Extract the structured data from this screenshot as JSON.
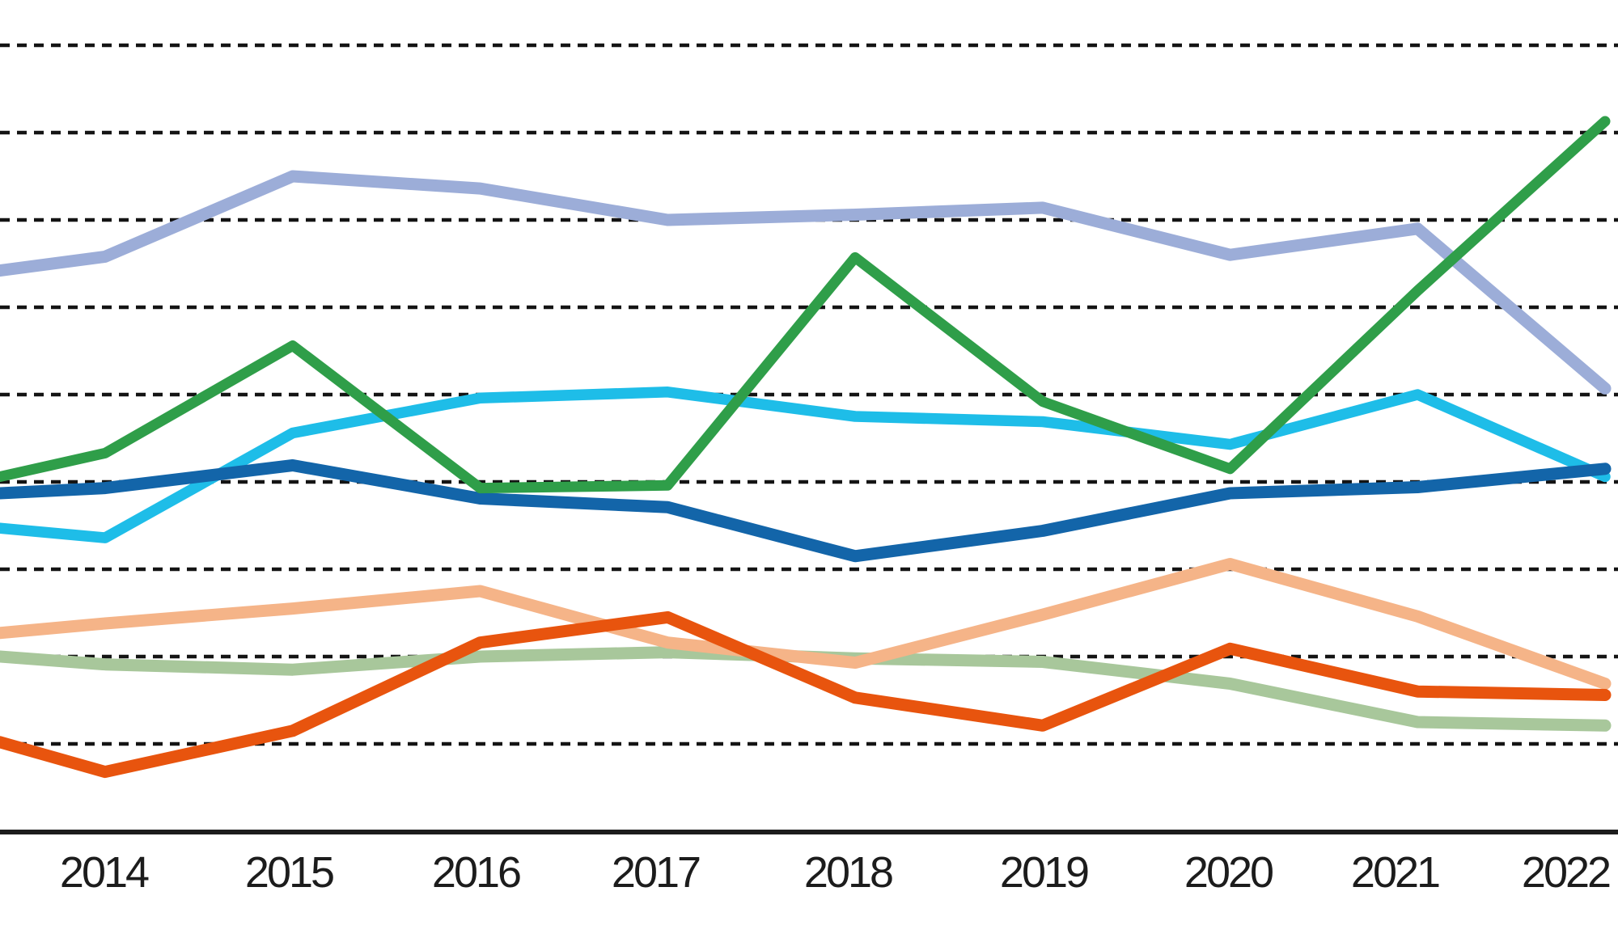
{
  "chart_data": {
    "type": "line",
    "title": "",
    "subtitle": "",
    "legend": "none",
    "grid": "horizontal-dashed",
    "x": [
      2014,
      2015,
      2016,
      2017,
      2018,
      2019,
      2020,
      2021,
      2022
    ],
    "x_tick_labels": [
      "2014",
      "2015",
      "2016",
      "2017",
      "2018",
      "2019",
      "2020",
      "2021",
      "2022"
    ],
    "ylabel": "",
    "xlabel": "",
    "ylim": [
      0,
      9.6
    ],
    "gridline_values": [
      1,
      2,
      3,
      4,
      5,
      6,
      7,
      8,
      9
    ],
    "y_axis_note": "y-axis unlabeled in image; values expressed in gridline units (1 unit = one dashed gridline step above the solid baseline axis = 0)",
    "x_edge_note": "lines are clipped at the left image edge (series continue from an off-screen earlier year); left_edge_value is the value where each line meets x-left edge; lines terminate with round caps at the 2022 point",
    "series": [
      {
        "name": "periwinkle-blue",
        "color": "#9cadd8",
        "left_edge_value": 6.42,
        "values": [
          6.58,
          7.5,
          7.36,
          7.0,
          7.06,
          7.14,
          6.6,
          6.9,
          5.07
        ]
      },
      {
        "name": "green",
        "color": "#2f9e49",
        "left_edge_value": 4.06,
        "values": [
          4.33,
          5.56,
          3.93,
          3.96,
          6.57,
          4.92,
          4.15,
          6.19,
          8.13
        ]
      },
      {
        "name": "cyan",
        "color": "#1ebde8",
        "left_edge_value": 3.47,
        "values": [
          3.36,
          4.56,
          4.96,
          5.03,
          4.75,
          4.69,
          4.43,
          5.0,
          4.06
        ]
      },
      {
        "name": "dark-blue",
        "color": "#1365a9",
        "left_edge_value": 3.87,
        "values": [
          3.93,
          4.19,
          3.81,
          3.71,
          3.15,
          3.44,
          3.87,
          3.94,
          4.15
        ]
      },
      {
        "name": "peach",
        "color": "#f5b488",
        "left_edge_value": 2.27,
        "values": [
          2.38,
          2.55,
          2.75,
          2.16,
          1.93,
          2.48,
          3.06,
          2.46,
          1.69
        ]
      },
      {
        "name": "sage",
        "color": "#a8c79b",
        "left_edge_value": 2.0,
        "values": [
          1.91,
          1.85,
          2.0,
          2.05,
          1.98,
          1.94,
          1.69,
          1.25,
          1.21
        ]
      },
      {
        "name": "orange",
        "color": "#e8540e",
        "left_edge_value": 1.02,
        "values": [
          0.68,
          1.15,
          2.16,
          2.45,
          1.53,
          1.21,
          2.09,
          1.6,
          1.56
        ]
      }
    ],
    "axis_color": "#1c1c1c",
    "gridline_color": "#141414"
  }
}
